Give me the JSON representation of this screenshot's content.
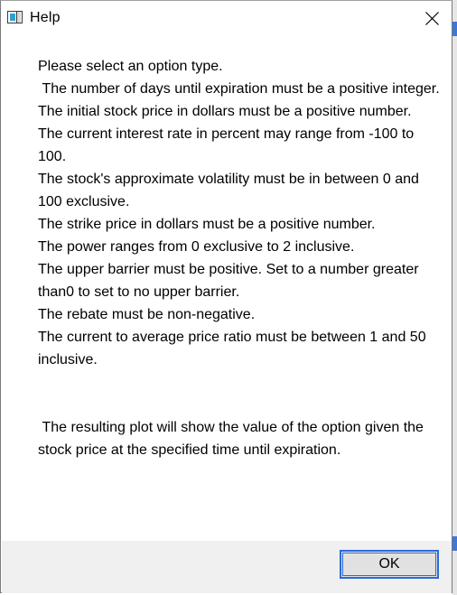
{
  "window": {
    "title": "Help",
    "icon": "app-window-icon",
    "close_icon": "close-icon"
  },
  "message": {
    "lines": [
      "Please select an option type.",
      " The number of days until expiration must be a positive integer.",
      "The initial stock price in dollars must be a positive number.",
      "The current interest rate in percent may range from -100 to 100.",
      "The stock's approximate volatility must be in between 0 and 100 exclusive.",
      "The strike price in dollars must be a positive number.",
      "The power ranges from 0 exclusive to 2 inclusive.",
      "The upper barrier must be positive. Set to a number greater than0 to set to no upper barrier.",
      "The rebate must be non-negative.",
      "The current to average price ratio must be between 1 and 50 inclusive."
    ],
    "footer_text": " The resulting plot will show the value of the option given the stock price at the specified time until expiration."
  },
  "buttons": {
    "ok_label": "OK"
  },
  "colors": {
    "focus_border": "#2c6bd6",
    "footer_bg": "#f0f0f0",
    "button_bg": "#e1e1e1"
  }
}
